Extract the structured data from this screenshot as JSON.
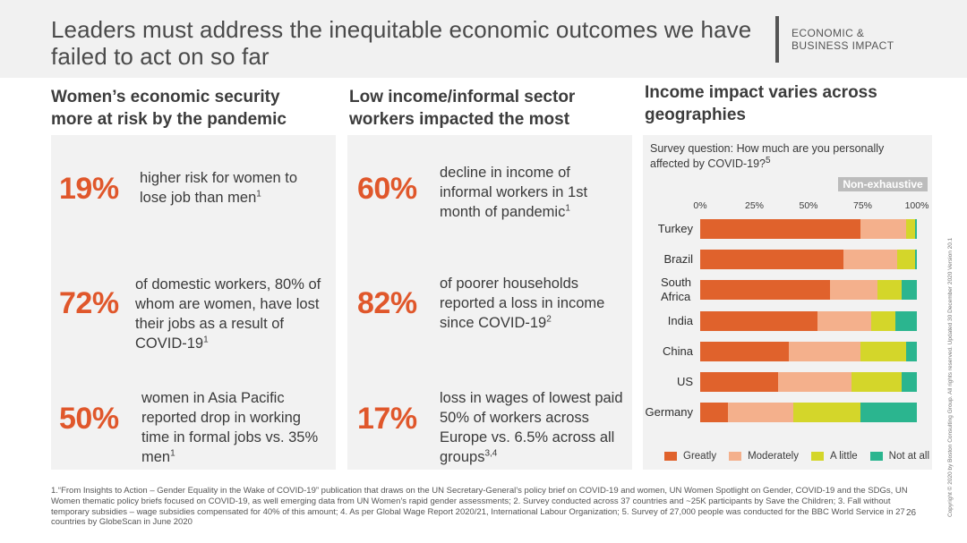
{
  "header": {
    "title": "Leaders must address the inequitable economic outcomes we have failed to act on so far",
    "tag": "ECONOMIC &\nBUSINESS IMPACT"
  },
  "columns": [
    {
      "heading": "Women’s economic security more at risk by the pandemic",
      "stats": [
        {
          "value": "19%",
          "text": "higher risk for women to lose job than men",
          "ref": "1"
        },
        {
          "value": "72%",
          "text": "of domestic workers, 80% of whom are women, have lost their jobs as a result of COVID-19",
          "ref": "1"
        },
        {
          "value": "50%",
          "text": "women in Asia Pacific reported drop in working time in formal jobs vs. 35% men",
          "ref": "1"
        }
      ]
    },
    {
      "heading": "Low income/informal sector workers impacted the most",
      "stats": [
        {
          "value": "60%",
          "text": "decline in income of informal workers in 1st month of pandemic",
          "ref": "1"
        },
        {
          "value": "82%",
          "text": "of poorer households reported a loss in income since COVID-19",
          "ref": "2"
        },
        {
          "value": "17%",
          "text": "loss in wages of lowest paid 50% of  workers across Europe vs. 6.5% across all groups",
          "ref": "3,4"
        }
      ]
    },
    {
      "heading": "Income impact varies across geographies"
    }
  ],
  "chart_data": {
    "type": "bar",
    "orientation": "horizontal",
    "stacked": true,
    "subtitle": "Survey question: How much are you personally affected by COVID-19?",
    "subtitle_ref": "5",
    "badge": "Non-exhaustive",
    "x_ticks": [
      "0%",
      "25%",
      "50%",
      "75%",
      "100%"
    ],
    "xlim": [
      0,
      100
    ],
    "categories": [
      "Turkey",
      "Brazil",
      "South Africa",
      "India",
      "China",
      "US",
      "Germany"
    ],
    "series": [
      {
        "name": "Greatly",
        "color": "#e0622c",
        "values": [
          74,
          66,
          60,
          54,
          41,
          36,
          13
        ]
      },
      {
        "name": "Moderately",
        "color": "#f4b08c",
        "values": [
          21,
          25,
          22,
          25,
          33,
          34,
          30
        ]
      },
      {
        "name": "A little",
        "color": "#d4d62a",
        "values": [
          4,
          8,
          11,
          11,
          21,
          23,
          31
        ]
      },
      {
        "name": "Not at all",
        "color": "#2bb58f",
        "values": [
          1,
          1,
          7,
          10,
          5,
          7,
          26
        ]
      }
    ],
    "legend_position": "bottom"
  },
  "footnote": "1.“From Insights to Action – Gender Equality in the Wake of COVID-19” publication that  draws on the UN Secretary-General’s policy brief on COVID-19 and women, UN Women Spotlight on Gender, COVID-19 and the SDGs, UN Women thematic policy briefs focused on COVID-19, as well emerging data from UN Women’s rapid gender assessments; 2. Survey conducted across 37 countries and ~25K participants by Save the Children; 3. Fall without temporary subsidies – wage subsidies compensated for 40% of this amount;  4. As per Global Wage Report 2020/21, International Labour Organization; 5. Survey of 27,000 people was conducted for the BBC World Service in 27 countries by GlobeScan in June 2020",
  "page_number": "26",
  "copyright": "Copyright © 2020 by Boston Consulting Group. All rights reserved. Updated 30 December 2020 Version 20.1"
}
